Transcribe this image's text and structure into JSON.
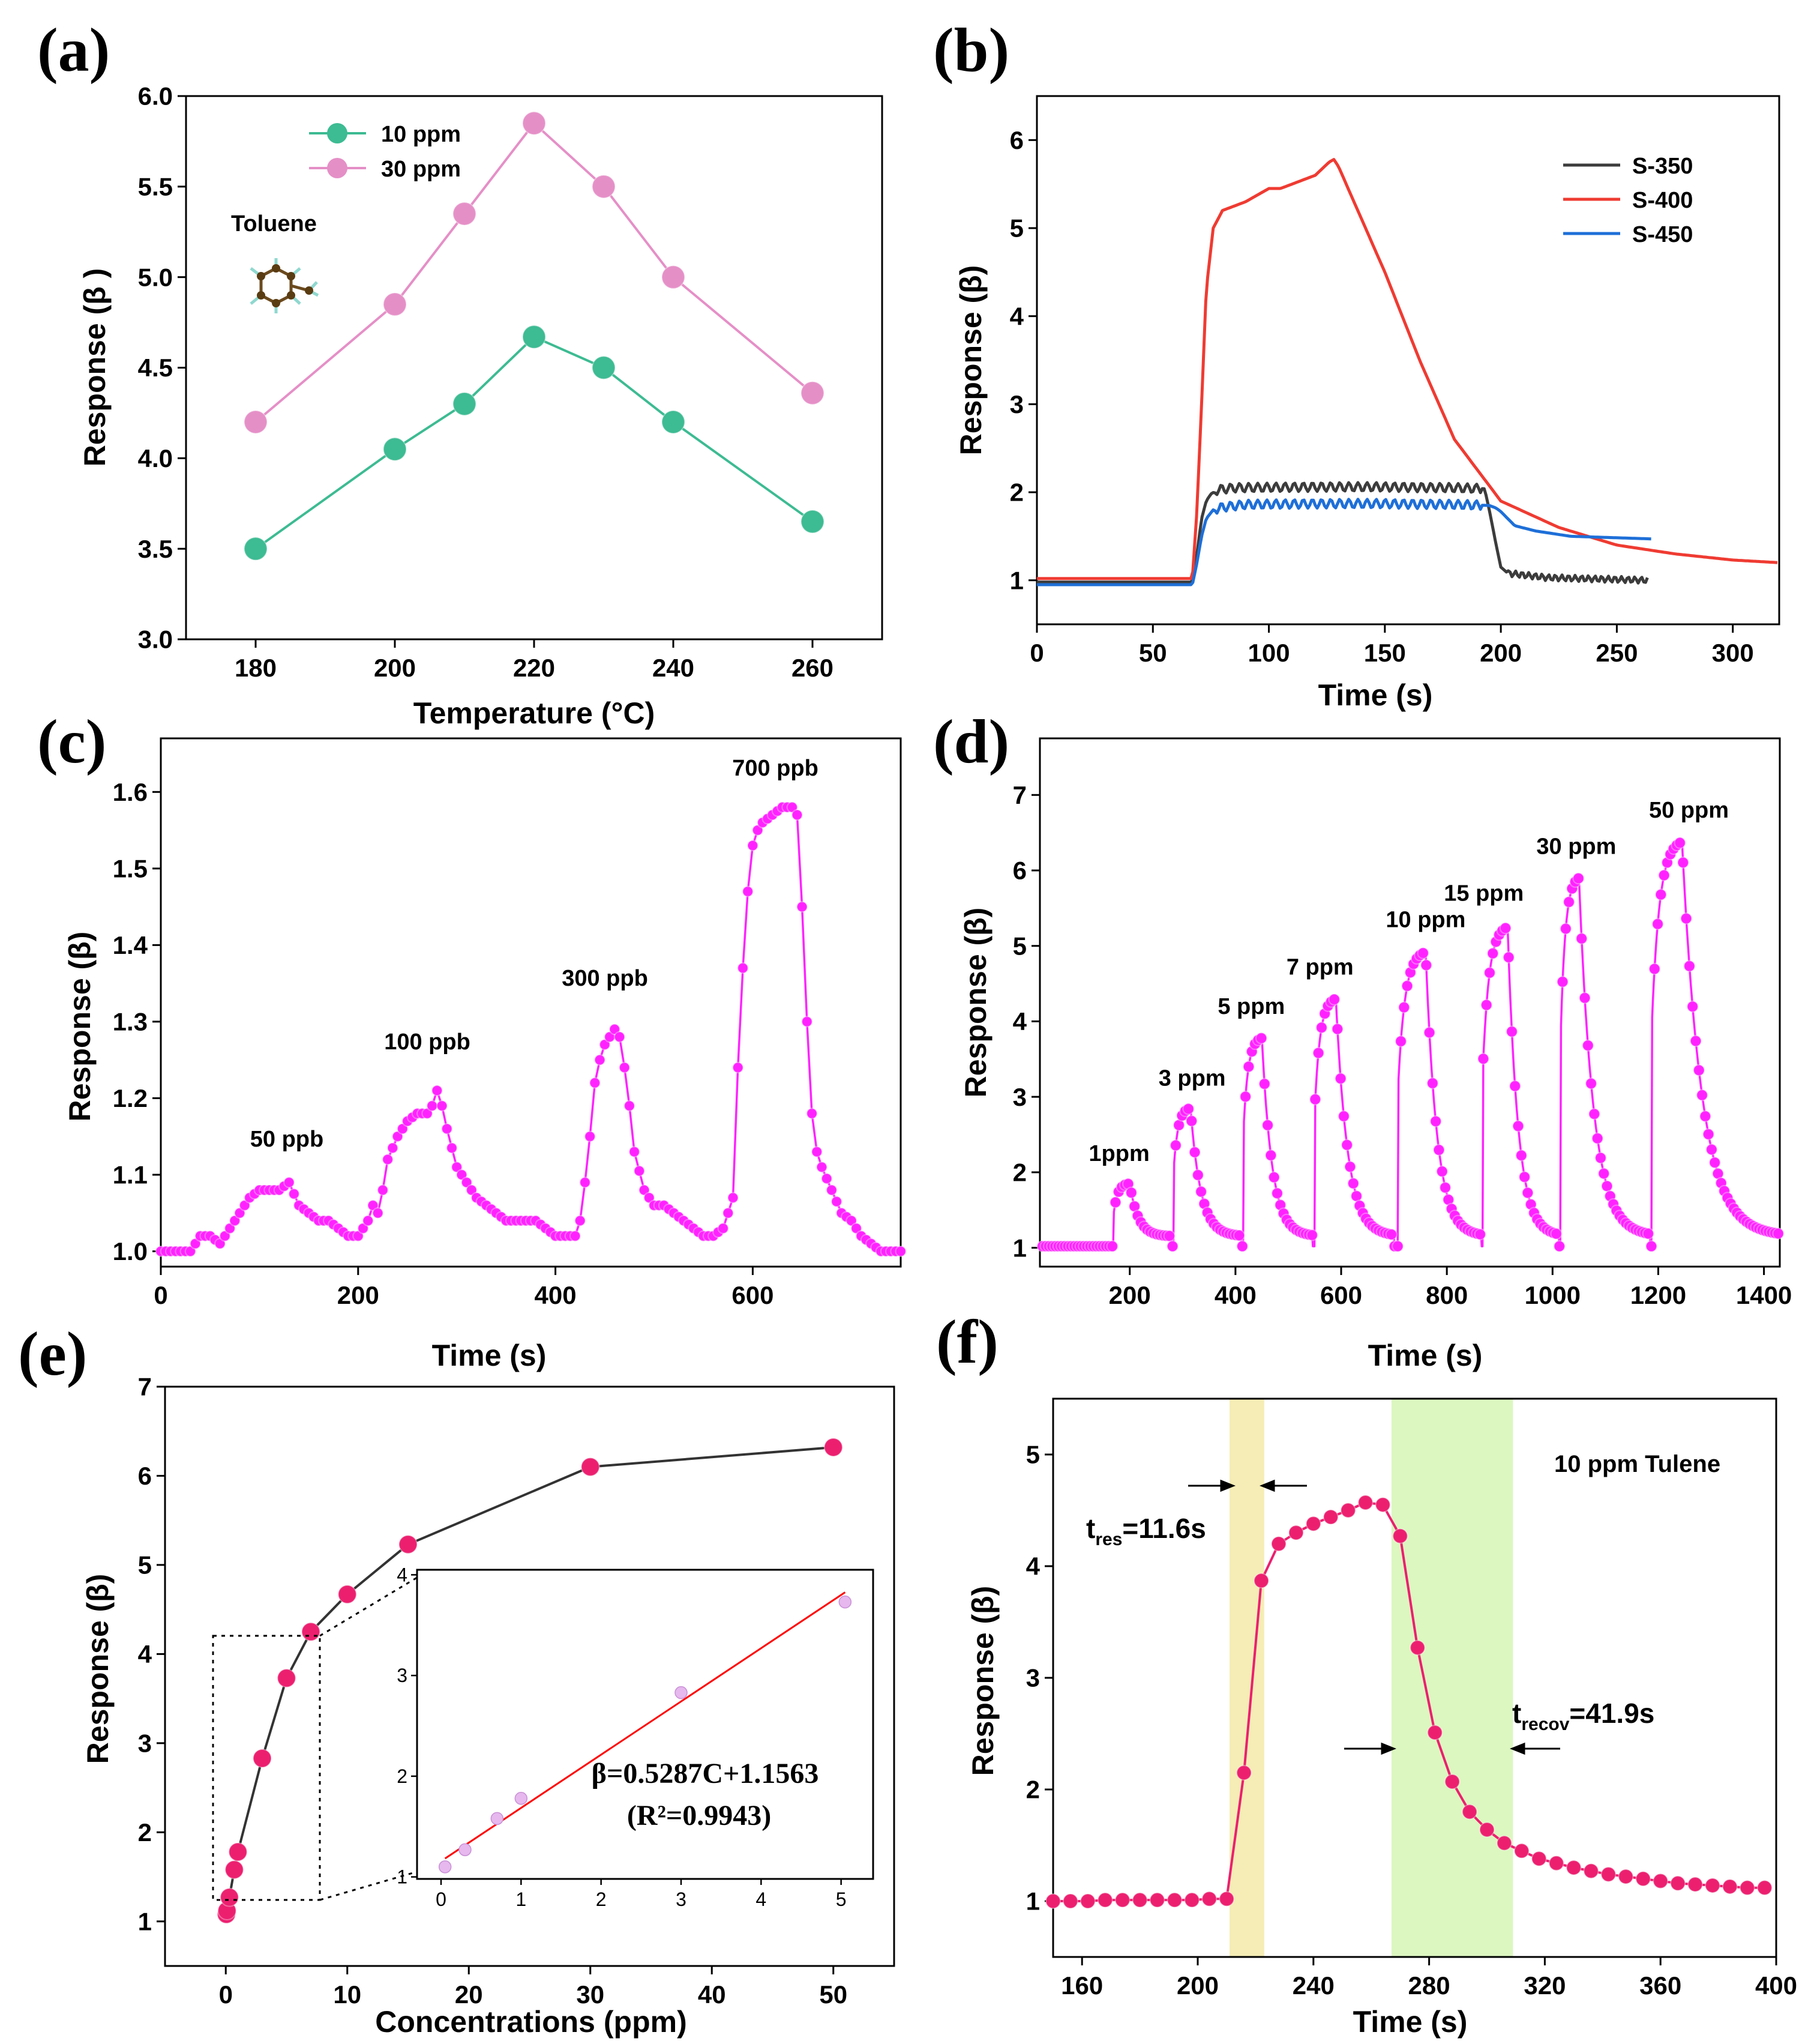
{
  "panel_labels": [
    "(a)",
    "(b)",
    "(c)",
    "(d)",
    "(e)",
    "(f)"
  ],
  "colors": {
    "green": "#3dbb92",
    "pink": "#e58fc7",
    "gray": "#3c3c3c",
    "red": "#ef3b32",
    "blue": "#1e6fd8",
    "magenta": "#ff22ff",
    "crimson": "#ec1f6f",
    "line_red": "#ff0000",
    "yellow_band": "#f5edb5",
    "green_band": "#dcf7c0",
    "dark_line": "#333333"
  },
  "chart_data": [
    {
      "id": "a",
      "type": "line",
      "title": "",
      "xlabel": "Temperature (°C)",
      "ylabel": "Response (β )",
      "xlim": [
        170,
        270
      ],
      "ylim": [
        3.0,
        6.0
      ],
      "xticks": [
        "180",
        "200",
        "220",
        "240",
        "260"
      ],
      "yticks": [
        "3.0",
        "3.5",
        "4.0",
        "4.5",
        "5.0",
        "5.5",
        "6.0"
      ],
      "annotation": "Toluene",
      "series": [
        {
          "name": "10 ppm",
          "x": [
            180,
            200,
            210,
            220,
            230,
            240,
            260
          ],
          "y": [
            3.5,
            4.05,
            4.3,
            4.67,
            4.5,
            4.2,
            3.65
          ]
        },
        {
          "name": "30 ppm",
          "x": [
            180,
            200,
            210,
            220,
            230,
            240,
            260
          ],
          "y": [
            4.2,
            4.85,
            5.35,
            5.85,
            5.5,
            5.0,
            4.36
          ]
        }
      ]
    },
    {
      "id": "b",
      "type": "line",
      "xlabel": "Time (s)",
      "ylabel": "Response (β)",
      "xlim": [
        0,
        320
      ],
      "ylim": [
        0.5,
        6.5
      ],
      "xticks": [
        "0",
        "50",
        "100",
        "150",
        "200",
        "250",
        "300"
      ],
      "yticks": [
        "1",
        "2",
        "3",
        "4",
        "5",
        "6"
      ],
      "series": [
        {
          "name": "S-350",
          "x": [
            0,
            67,
            69,
            71,
            73,
            75,
            78,
            85,
            120,
            150,
            180,
            193,
            195,
            198,
            200,
            203,
            220,
            264
          ],
          "y": [
            0.98,
            0.98,
            1.3,
            1.7,
            1.9,
            1.98,
            2.03,
            2.05,
            2.06,
            2.06,
            2.05,
            2.04,
            1.8,
            1.4,
            1.15,
            1.08,
            1.03,
            1.0
          ]
        },
        {
          "name": "S-400",
          "x": [
            0,
            67,
            69,
            71,
            73,
            76,
            80,
            85,
            90,
            100,
            105,
            110,
            120,
            126,
            128,
            130,
            135,
            150,
            165,
            180,
            200,
            225,
            250,
            275,
            300,
            320
          ],
          "y": [
            1.02,
            1.02,
            1.8,
            3.0,
            4.3,
            5.0,
            5.2,
            5.25,
            5.3,
            5.45,
            5.45,
            5.5,
            5.6,
            5.75,
            5.78,
            5.7,
            5.4,
            4.5,
            3.5,
            2.6,
            1.9,
            1.6,
            1.4,
            1.3,
            1.23,
            1.2
          ]
        },
        {
          "name": "S-450",
          "x": [
            0,
            67,
            69,
            71,
            73,
            76,
            80,
            90,
            120,
            150,
            180,
            195,
            198,
            200,
            203,
            206,
            215,
            230,
            265
          ],
          "y": [
            0.95,
            0.95,
            1.2,
            1.5,
            1.7,
            1.8,
            1.83,
            1.86,
            1.87,
            1.87,
            1.86,
            1.85,
            1.82,
            1.78,
            1.7,
            1.62,
            1.56,
            1.5,
            1.47
          ]
        }
      ]
    },
    {
      "id": "c",
      "type": "line",
      "xlabel": "Time (s)",
      "ylabel": "Response (β)",
      "xlim": [
        0,
        750
      ],
      "ylim": [
        0.98,
        1.67
      ],
      "xticks": [
        "0",
        "200",
        "400",
        "600"
      ],
      "yticks": [
        "1.0",
        "1.1",
        "1.2",
        "1.3",
        "1.4",
        "1.5",
        "1.6"
      ],
      "annotations": [
        "50 ppb",
        "100 ppb",
        "300 ppb",
        "700 ppb"
      ],
      "series": [
        {
          "name": "response",
          "x": [
            0,
            30,
            40,
            50,
            60,
            70,
            80,
            90,
            100,
            110,
            120,
            130,
            140,
            150,
            160,
            170,
            180,
            190,
            200,
            210,
            215,
            220,
            225,
            230,
            240,
            250,
            260,
            270,
            275,
            280,
            285,
            290,
            300,
            310,
            320,
            330,
            340,
            350,
            360,
            370,
            380,
            390,
            400,
            410,
            420,
            425,
            430,
            435,
            440,
            445,
            450,
            455,
            460,
            465,
            470,
            475,
            480,
            490,
            500,
            510,
            520,
            530,
            540,
            550,
            560,
            570,
            580,
            585,
            590,
            595,
            600,
            605,
            610,
            620,
            630,
            640,
            645,
            650,
            655,
            660,
            665,
            670,
            680,
            690,
            700,
            710,
            720,
            730,
            740,
            750
          ],
          "y": [
            1.0,
            1.0,
            1.02,
            1.02,
            1.01,
            1.03,
            1.05,
            1.07,
            1.08,
            1.08,
            1.08,
            1.09,
            1.06,
            1.05,
            1.04,
            1.04,
            1.03,
            1.02,
            1.02,
            1.04,
            1.06,
            1.05,
            1.08,
            1.12,
            1.15,
            1.17,
            1.18,
            1.18,
            1.19,
            1.21,
            1.19,
            1.16,
            1.11,
            1.09,
            1.07,
            1.06,
            1.05,
            1.04,
            1.04,
            1.04,
            1.04,
            1.03,
            1.02,
            1.02,
            1.02,
            1.04,
            1.09,
            1.15,
            1.22,
            1.25,
            1.27,
            1.28,
            1.29,
            1.28,
            1.24,
            1.19,
            1.13,
            1.08,
            1.06,
            1.06,
            1.05,
            1.04,
            1.03,
            1.02,
            1.02,
            1.03,
            1.07,
            1.24,
            1.37,
            1.47,
            1.53,
            1.55,
            1.56,
            1.57,
            1.58,
            1.58,
            1.57,
            1.45,
            1.3,
            1.18,
            1.13,
            1.11,
            1.08,
            1.05,
            1.04,
            1.02,
            1.01,
            1.0,
            1.0,
            1.0
          ]
        }
      ]
    },
    {
      "id": "d",
      "type": "line",
      "xlabel": "Time (s)",
      "ylabel": "Response (β)",
      "xlim": [
        30,
        1430
      ],
      "ylim": [
        0.75,
        7.75
      ],
      "xticks": [
        "200",
        "400",
        "600",
        "800",
        "1000",
        "1200",
        "1400"
      ],
      "yticks": [
        "1",
        "2",
        "3",
        "4",
        "5",
        "6",
        "7"
      ],
      "annotations": [
        "1ppm",
        "3 ppm",
        "5 ppm",
        "7 ppm",
        "10 ppm",
        "15  ppm",
        "30 ppm",
        "50 ppm"
      ],
      "pulses": [
        {
          "start": 170,
          "end": 200,
          "peak": 1.85,
          "recover": 280
        },
        {
          "start": 283,
          "end": 315,
          "peak": 2.85,
          "recover": 410
        },
        {
          "start": 415,
          "end": 450,
          "peak": 3.78,
          "recover": 545
        },
        {
          "start": 550,
          "end": 590,
          "peak": 4.3,
          "recover": 700
        },
        {
          "start": 708,
          "end": 760,
          "peak": 4.92,
          "recover": 865
        },
        {
          "start": 868,
          "end": 915,
          "peak": 5.25,
          "recover": 1012
        },
        {
          "start": 1015,
          "end": 1050,
          "peak": 5.9,
          "recover": 1185
        },
        {
          "start": 1188,
          "end": 1245,
          "peak": 6.38,
          "recover": 1430
        }
      ]
    },
    {
      "id": "e",
      "type": "scatter",
      "xlabel": "Concentrations (ppm)",
      "ylabel": "Response (β)",
      "xlim": [
        -5,
        55
      ],
      "ylim": [
        0.5,
        7
      ],
      "xticks": [
        "0",
        "10",
        "20",
        "30",
        "40",
        "50"
      ],
      "yticks": [
        "1",
        "2",
        "3",
        "4",
        "5",
        "6",
        "7"
      ],
      "series": [
        {
          "name": "response",
          "x": [
            0.05,
            0.1,
            0.3,
            0.7,
            1,
            3,
            5,
            7,
            10,
            15,
            30,
            50
          ],
          "y": [
            1.08,
            1.12,
            1.27,
            1.58,
            1.78,
            2.83,
            3.73,
            4.25,
            4.67,
            5.23,
            6.1,
            6.32
          ]
        }
      ],
      "inset": {
        "xlim": [
          -0.3,
          5.4
        ],
        "ylim": [
          0.98,
          4.05
        ],
        "xticks": [
          "0",
          "1",
          "2",
          "3",
          "4",
          "5"
        ],
        "yticks": [
          "1",
          "2",
          "3",
          "4"
        ],
        "x": [
          0.05,
          0.3,
          0.7,
          1,
          3,
          5.05
        ],
        "y": [
          1.1,
          1.27,
          1.58,
          1.78,
          2.83,
          3.73
        ],
        "fit": {
          "slope": 0.5287,
          "intercept": 1.1563,
          "x_range": [
            0.05,
            5.05
          ]
        },
        "equation": "β=0.5287C+1.1563",
        "r2": "(R²=0.9943)"
      }
    },
    {
      "id": "f",
      "type": "line",
      "xlabel": "Time (s)",
      "ylabel": "Response (β)",
      "xlim": [
        150,
        400
      ],
      "ylim": [
        0.5,
        5.5
      ],
      "xticks": [
        "160",
        "200",
        "240",
        "280",
        "320",
        "360",
        "400"
      ],
      "yticks": [
        "1",
        "2",
        "3",
        "4",
        "5"
      ],
      "title": "10 ppm Tulene",
      "t_res": "11.6s",
      "t_recov": "41.9s",
      "bands": [
        {
          "x0": 211,
          "x1": 223
        },
        {
          "x0": 267,
          "x1": 309
        }
      ],
      "series": [
        {
          "name": "response",
          "x": [
            150,
            156,
            162,
            168,
            174,
            180,
            186,
            192,
            198,
            204,
            210,
            216,
            222,
            228,
            234,
            240,
            246,
            252,
            258,
            264,
            270,
            276,
            282,
            288,
            294,
            300,
            306,
            312,
            318,
            324,
            330,
            336,
            342,
            348,
            354,
            360,
            366,
            372,
            378,
            384,
            390,
            396
          ],
          "y": [
            1.0,
            1.0,
            1.0,
            1.01,
            1.01,
            1.01,
            1.01,
            1.01,
            1.01,
            1.02,
            1.02,
            2.15,
            3.87,
            4.2,
            4.3,
            4.38,
            4.44,
            4.5,
            4.57,
            4.55,
            4.27,
            3.27,
            2.51,
            2.07,
            1.8,
            1.64,
            1.52,
            1.45,
            1.38,
            1.34,
            1.3,
            1.27,
            1.24,
            1.22,
            1.2,
            1.18,
            1.16,
            1.15,
            1.14,
            1.13,
            1.12,
            1.12
          ]
        }
      ]
    }
  ]
}
